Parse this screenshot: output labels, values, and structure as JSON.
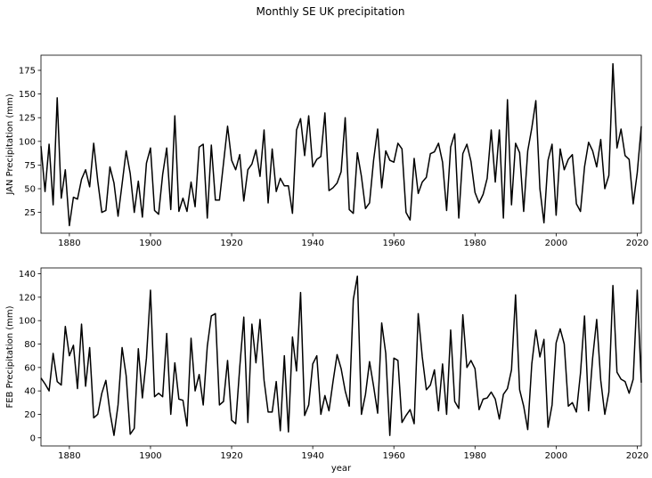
{
  "figure": {
    "title": "Monthly SE UK precipitation"
  },
  "chart_data": [
    {
      "type": "line",
      "title": "",
      "xlabel": "",
      "ylabel": "JAN Precipitation (mm)",
      "xlim": [
        1873,
        2021
      ],
      "ylim": [
        3,
        191
      ],
      "xticks": [
        1880,
        1900,
        1920,
        1940,
        1960,
        1980,
        2000,
        2020
      ],
      "yticks": [
        25,
        50,
        75,
        100,
        125,
        150,
        175
      ],
      "color": "#000000",
      "grid": false,
      "series": [
        {
          "x": [
            1873,
            1874,
            1875,
            1876,
            1877,
            1878,
            1879,
            1880,
            1881,
            1882,
            1883,
            1884,
            1885,
            1886,
            1887,
            1888,
            1889,
            1890,
            1891,
            1892,
            1893,
            1894,
            1895,
            1896,
            1897,
            1898,
            1899,
            1900,
            1901,
            1902,
            1903,
            1904,
            1905,
            1906,
            1907,
            1908,
            1909,
            1910,
            1911,
            1912,
            1913,
            1914,
            1915,
            1916,
            1917,
            1918,
            1919,
            1920,
            1921,
            1922,
            1923,
            1924,
            1925,
            1926,
            1927,
            1928,
            1929,
            1930,
            1931,
            1932,
            1933,
            1934,
            1935,
            1936,
            1937,
            1938,
            1939,
            1940,
            1941,
            1942,
            1943,
            1944,
            1945,
            1946,
            1947,
            1948,
            1949,
            1950,
            1951,
            1952,
            1953,
            1954,
            1955,
            1956,
            1957,
            1958,
            1959,
            1960,
            1961,
            1962,
            1963,
            1964,
            1965,
            1966,
            1967,
            1968,
            1969,
            1970,
            1971,
            1972,
            1973,
            1974,
            1975,
            1976,
            1977,
            1978,
            1979,
            1980,
            1981,
            1982,
            1983,
            1984,
            1985,
            1986,
            1987,
            1988,
            1989,
            1990,
            1991,
            1992,
            1993,
            1994,
            1995,
            1996,
            1997,
            1998,
            1999,
            2000,
            2001,
            2002,
            2003,
            2004,
            2005,
            2006,
            2007,
            2008,
            2009,
            2010,
            2011,
            2012,
            2013,
            2014,
            2015,
            2016,
            2017,
            2018,
            2019,
            2020,
            2021
          ],
          "y": [
            95,
            47,
            97,
            33,
            146,
            40,
            70,
            11,
            41,
            39,
            60,
            70,
            52,
            98,
            58,
            25,
            27,
            73,
            56,
            21,
            55,
            90,
            66,
            25,
            58,
            20,
            77,
            93,
            27,
            23,
            65,
            93,
            28,
            127,
            26,
            40,
            26,
            57,
            31,
            94,
            97,
            19,
            96,
            38,
            38,
            77,
            116,
            80,
            70,
            86,
            37,
            70,
            76,
            91,
            63,
            112,
            35,
            92,
            47,
            61,
            53,
            53,
            24,
            112,
            124,
            85,
            127,
            73,
            81,
            84,
            130,
            48,
            51,
            56,
            68,
            125,
            28,
            24,
            88,
            63,
            29,
            35,
            80,
            113,
            51,
            90,
            80,
            78,
            98,
            92,
            25,
            17,
            82,
            45,
            57,
            62,
            87,
            89,
            98,
            78,
            27,
            94,
            108,
            19,
            87,
            97,
            79,
            46,
            35,
            44,
            61,
            112,
            57,
            112,
            19,
            144,
            33,
            98,
            88,
            26,
            90,
            114,
            143,
            50,
            14,
            80,
            97,
            22,
            92,
            70,
            81,
            86,
            34,
            26,
            73,
            99,
            90,
            73,
            102,
            50,
            64,
            182,
            93,
            113,
            85,
            81,
            34,
            67,
            116
          ]
        }
      ]
    },
    {
      "type": "line",
      "title": "",
      "xlabel": "year",
      "ylabel": "FEB Precipitation (mm)",
      "xlim": [
        1873,
        2021
      ],
      "ylim": [
        -7,
        145
      ],
      "xticks": [
        1880,
        1900,
        1920,
        1940,
        1960,
        1980,
        2000,
        2020
      ],
      "yticks": [
        0,
        20,
        40,
        60,
        80,
        100,
        120,
        140
      ],
      "color": "#000000",
      "grid": false,
      "series": [
        {
          "x": [
            1873,
            1874,
            1875,
            1876,
            1877,
            1878,
            1879,
            1880,
            1881,
            1882,
            1883,
            1884,
            1885,
            1886,
            1887,
            1888,
            1889,
            1890,
            1891,
            1892,
            1893,
            1894,
            1895,
            1896,
            1897,
            1898,
            1899,
            1900,
            1901,
            1902,
            1903,
            1904,
            1905,
            1906,
            1907,
            1908,
            1909,
            1910,
            1911,
            1912,
            1913,
            1914,
            1915,
            1916,
            1917,
            1918,
            1919,
            1920,
            1921,
            1922,
            1923,
            1924,
            1925,
            1926,
            1927,
            1928,
            1929,
            1930,
            1931,
            1932,
            1933,
            1934,
            1935,
            1936,
            1937,
            1938,
            1939,
            1940,
            1941,
            1942,
            1943,
            1944,
            1945,
            1946,
            1947,
            1948,
            1949,
            1950,
            1951,
            1952,
            1953,
            1954,
            1955,
            1956,
            1957,
            1958,
            1959,
            1960,
            1961,
            1962,
            1963,
            1964,
            1965,
            1966,
            1967,
            1968,
            1969,
            1970,
            1971,
            1972,
            1973,
            1974,
            1975,
            1976,
            1977,
            1978,
            1979,
            1980,
            1981,
            1982,
            1983,
            1984,
            1985,
            1986,
            1987,
            1988,
            1989,
            1990,
            1991,
            1992,
            1993,
            1994,
            1995,
            1996,
            1997,
            1998,
            1999,
            2000,
            2001,
            2002,
            2003,
            2004,
            2005,
            2006,
            2007,
            2008,
            2009,
            2010,
            2011,
            2012,
            2013,
            2014,
            2015,
            2016,
            2017,
            2018,
            2019,
            2020,
            2021
          ],
          "y": [
            51,
            46,
            40,
            72,
            48,
            45,
            95,
            70,
            79,
            42,
            97,
            44,
            77,
            17,
            20,
            38,
            49,
            22,
            2,
            28,
            77,
            53,
            3,
            8,
            76,
            34,
            68,
            126,
            35,
            38,
            35,
            89,
            20,
            64,
            33,
            32,
            10,
            85,
            40,
            54,
            28,
            78,
            104,
            106,
            28,
            31,
            66,
            15,
            12,
            60,
            103,
            13,
            97,
            64,
            101,
            49,
            22,
            22,
            48,
            6,
            70,
            5,
            86,
            57,
            124,
            19,
            28,
            63,
            70,
            20,
            36,
            23,
            48,
            71,
            59,
            40,
            27,
            118,
            138,
            20,
            37,
            65,
            44,
            21,
            98,
            72,
            2,
            68,
            66,
            13,
            19,
            24,
            12,
            106,
            69,
            41,
            45,
            58,
            23,
            63,
            20,
            92,
            31,
            25,
            105,
            60,
            66,
            59,
            24,
            33,
            34,
            39,
            33,
            16,
            37,
            42,
            58,
            122,
            41,
            27,
            7,
            63,
            92,
            69,
            84,
            9,
            28,
            81,
            93,
            80,
            27,
            30,
            22,
            55,
            104,
            23,
            68,
            101,
            49,
            20,
            39,
            130,
            56,
            50,
            48,
            38,
            50,
            126,
            47
          ]
        }
      ]
    }
  ]
}
